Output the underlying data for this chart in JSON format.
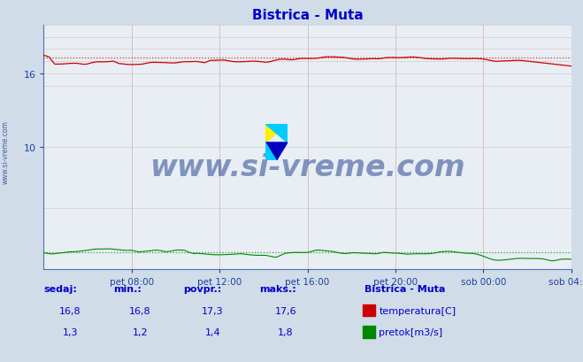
{
  "title": "Bistrica - Muta",
  "title_color": "#0000cc",
  "bg_color": "#d0dce8",
  "plot_bg_color": "#e8eef4",
  "xlim": [
    0,
    288
  ],
  "ylim": [
    0,
    20
  ],
  "yticks": [
    10,
    16
  ],
  "xtick_labels": [
    "pet 08:00",
    "pet 12:00",
    "pet 16:00",
    "pet 20:00",
    "sob 00:00",
    "sob 04:00"
  ],
  "xtick_positions": [
    48,
    96,
    144,
    192,
    240,
    288
  ],
  "temp_color": "#cc0000",
  "flow_color": "#008800",
  "temp_avg": 17.3,
  "temp_min": 16.8,
  "temp_max": 17.6,
  "temp_current": 16.8,
  "flow_avg": 1.4,
  "flow_min": 1.2,
  "flow_max": 1.8,
  "flow_current": 1.3,
  "watermark": "www.si-vreme.com",
  "watermark_color": "#1a3a8a",
  "table_headers": [
    "sedaj:",
    "min.:",
    "povpr.:",
    "maks.:"
  ],
  "table_color": "#0000cc",
  "legend_title": "Bistrica - Muta",
  "legend_items": [
    "temperatura[C]",
    "pretok[m3/s]"
  ]
}
